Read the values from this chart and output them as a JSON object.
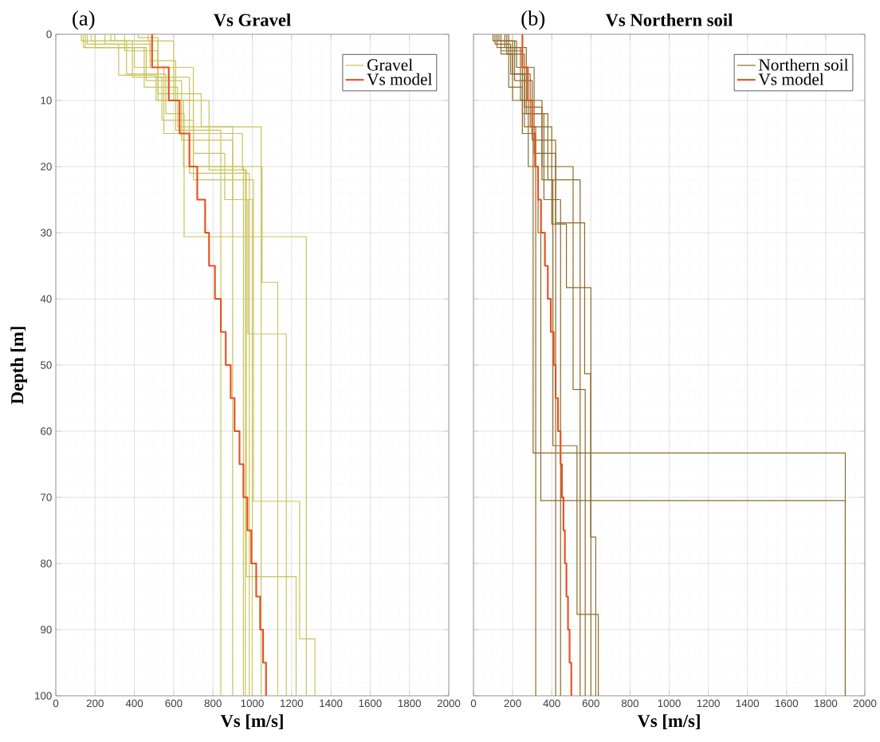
{
  "chart_data": [
    {
      "type": "line",
      "title": "Vs Gravel",
      "xlabel": "Vs [m/s]",
      "ylabel": "Depth [m]",
      "annotations": [
        "(a)"
      ],
      "xlim": [
        0,
        2000
      ],
      "ylim": [
        100,
        0
      ],
      "xticks": [
        0,
        200,
        400,
        600,
        800,
        1000,
        1200,
        1400,
        1600,
        1800,
        2000
      ],
      "yticks": [
        0,
        10,
        20,
        30,
        40,
        50,
        60,
        70,
        80,
        90,
        100
      ],
      "grid": true,
      "legend": "top right",
      "series": [
        {
          "name": "Gravel",
          "color": "#c9c35c",
          "x": [
            130,
            130,
            360,
            360,
            560,
            560,
            653,
            653,
            1275,
            1275
          ],
          "values": [
            0,
            1,
            1,
            6,
            6,
            12,
            12,
            30.6,
            30.6,
            100
          ]
        },
        {
          "color": "#c9c35c",
          "x": [
            150,
            150,
            400,
            400,
            550,
            550,
            950,
            950,
            965,
            965
          ],
          "values": [
            0,
            2,
            2,
            5,
            5,
            15,
            15,
            20.5,
            20.5,
            100
          ]
        },
        {
          "color": "#c9c35c",
          "x": [
            160,
            160,
            320,
            320,
            510,
            510,
            700,
            700,
            1050,
            1050,
            1130,
            1130
          ],
          "values": [
            0,
            1.5,
            1.5,
            6.2,
            6.2,
            10,
            10,
            20,
            20,
            37.5,
            37.5,
            100
          ]
        },
        {
          "color": "#c9c35c",
          "x": [
            200,
            200,
            450,
            450,
            620,
            620,
            900,
            900,
            978,
            978,
            1173,
            1173
          ],
          "values": [
            0,
            2,
            2,
            8,
            8,
            14,
            14,
            25,
            25,
            45.3,
            45.3,
            100
          ]
        },
        {
          "color": "#c9c35c",
          "x": [
            180,
            180,
            390,
            390,
            540,
            540,
            700,
            700,
            1006,
            1006,
            1241,
            1241,
            1319,
            1319
          ],
          "values": [
            0,
            1,
            1,
            6.5,
            6.5,
            13,
            13,
            22,
            22,
            70.6,
            70.6,
            91.4,
            91.4,
            100
          ]
        },
        {
          "color": "#c9c35c",
          "x": [
            250,
            250,
            480,
            480,
            600,
            600,
            780,
            780,
            970,
            970,
            1223,
            1223
          ],
          "values": [
            0,
            1.5,
            1.5,
            5,
            5,
            10,
            10,
            20.5,
            20.5,
            82,
            82,
            100
          ]
        },
        {
          "color": "#c9c35c",
          "x": [
            300,
            300,
            480,
            480,
            610,
            610,
            840,
            840
          ],
          "values": [
            0,
            1,
            1,
            4,
            4,
            14.5,
            14.5,
            100
          ]
        },
        {
          "color": "#c9c35c",
          "x": [
            140,
            140,
            460,
            460,
            640,
            640,
            900,
            900
          ],
          "values": [
            0,
            2,
            2,
            7,
            7,
            16,
            16,
            100
          ]
        },
        {
          "color": "#c9c35c",
          "x": [
            420,
            420,
            520,
            520,
            650,
            650,
            955,
            955
          ],
          "values": [
            0,
            0.5,
            0.5,
            10,
            10,
            20,
            20,
            100
          ]
        },
        {
          "color": "#c9c35c",
          "x": [
            470,
            470,
            600,
            600,
            700,
            700,
            860,
            860,
            1000,
            1000
          ],
          "values": [
            0,
            1,
            1,
            5,
            5,
            18,
            18,
            25,
            25,
            100
          ]
        },
        {
          "color": "#c9c35c",
          "x": [
            350,
            350,
            520,
            520,
            740,
            740,
            1045,
            1045
          ],
          "values": [
            0,
            2.5,
            2.5,
            9,
            9,
            14,
            14,
            100
          ]
        },
        {
          "color": "#c9c35c",
          "x": [
            280,
            280,
            520,
            520,
            680,
            680,
            985,
            985
          ],
          "values": [
            0,
            1,
            1,
            6.5,
            6.5,
            21,
            21,
            100
          ]
        },
        {
          "name": "Vs model",
          "color": "#e8501e",
          "x": [
            490,
            490,
            575,
            575,
            630,
            630,
            680,
            680,
            720,
            720,
            760,
            760,
            780,
            780,
            810,
            810,
            840,
            840,
            865,
            865,
            890,
            890,
            910,
            910,
            935,
            935,
            955,
            955,
            975,
            975,
            995,
            995,
            1020,
            1020,
            1040,
            1040,
            1055,
            1055,
            1070,
            1070
          ],
          "values": [
            0,
            5,
            5,
            10,
            10,
            15,
            15,
            20,
            20,
            25,
            25,
            30,
            30,
            35,
            35,
            40,
            40,
            45,
            45,
            50,
            50,
            55,
            55,
            60,
            60,
            65,
            65,
            70,
            70,
            75,
            75,
            80,
            80,
            85,
            85,
            90,
            90,
            95,
            95,
            100
          ]
        }
      ]
    },
    {
      "type": "line",
      "title": "Vs Northern soil",
      "xlabel": "Vs [m/s]",
      "annotations": [
        "(b)"
      ],
      "xlim": [
        0,
        2000
      ],
      "ylim": [
        100,
        0
      ],
      "xticks": [
        0,
        200,
        400,
        600,
        800,
        1000,
        1200,
        1400,
        1600,
        1800,
        2000
      ],
      "yticks": [
        0,
        10,
        20,
        30,
        40,
        50,
        60,
        70,
        80,
        90,
        100
      ],
      "tick_labels": "x",
      "grid": true,
      "legend": "top right",
      "series": [
        {
          "name": "Northern soil",
          "color": "#8c6b2a",
          "x": [
            120,
            120,
            180,
            180,
            250,
            250,
            305,
            305,
            1900,
            1900
          ],
          "values": [
            0,
            2,
            2,
            8,
            8,
            15,
            15,
            63.3,
            63.3,
            100
          ]
        },
        {
          "color": "#8c6b2a",
          "x": [
            140,
            140,
            200,
            200,
            280,
            280,
            330,
            330,
            344,
            344,
            1900,
            1900
          ],
          "values": [
            0,
            3,
            3,
            10,
            10,
            20,
            20,
            30,
            30,
            70.5,
            70.5,
            100
          ]
        },
        {
          "color": "#8c6b2a",
          "x": [
            110,
            110,
            190,
            190,
            260,
            260,
            318,
            318
          ],
          "values": [
            0,
            1.5,
            1.5,
            6,
            6,
            14,
            14,
            100
          ]
        },
        {
          "color": "#8c6b2a",
          "x": [
            160,
            160,
            240,
            240,
            350,
            350,
            509,
            509,
            571,
            571
          ],
          "values": [
            0,
            2,
            2,
            10,
            10,
            20,
            20,
            53.7,
            53.7,
            100
          ]
        },
        {
          "color": "#8c6b2a",
          "x": [
            130,
            130,
            210,
            210,
            300,
            300,
            420,
            420,
            568,
            568,
            599,
            599,
            625,
            625
          ],
          "values": [
            0,
            1,
            1,
            7,
            7,
            16,
            16,
            28.5,
            28.5,
            51.3,
            51.3,
            76,
            76,
            100
          ]
        },
        {
          "color": "#8c6b2a",
          "x": [
            170,
            170,
            260,
            260,
            350,
            350,
            406,
            406,
            529,
            529,
            638,
            638
          ],
          "values": [
            0,
            3,
            3,
            11,
            11,
            22,
            22,
            62.2,
            62.2,
            87.7,
            87.7,
            100
          ]
        },
        {
          "color": "#8c6b2a",
          "x": [
            120,
            120,
            220,
            220,
            310,
            310,
            420,
            420
          ],
          "values": [
            0,
            1,
            1,
            5,
            5,
            18,
            18,
            100
          ]
        },
        {
          "color": "#8c6b2a",
          "x": [
            180,
            180,
            270,
            270,
            360,
            360,
            445,
            445
          ],
          "values": [
            0,
            2,
            2,
            12,
            12,
            25,
            25,
            100
          ]
        },
        {
          "color": "#8c6b2a",
          "x": [
            100,
            100,
            200,
            200,
            290,
            290,
            400,
            400,
            475,
            475,
            600,
            600
          ],
          "values": [
            0,
            1,
            1,
            6,
            6,
            14,
            14,
            28.7,
            28.7,
            38.3,
            38.3,
            100
          ]
        },
        {
          "color": "#8c6b2a",
          "x": [
            140,
            140,
            250,
            250,
            380,
            380,
            545,
            545
          ],
          "values": [
            0,
            2.5,
            2.5,
            12,
            12,
            22,
            22,
            100
          ]
        },
        {
          "name": "Vs model",
          "color": "#e8501e",
          "x": [
            250,
            250,
            278,
            278,
            300,
            300,
            315,
            315,
            330,
            330,
            345,
            345,
            365,
            365,
            380,
            380,
            395,
            395,
            410,
            410,
            420,
            420,
            432,
            432,
            445,
            445,
            452,
            452,
            460,
            460,
            467,
            467,
            475,
            475,
            483,
            483,
            491,
            491,
            500,
            500
          ],
          "values": [
            0,
            5,
            5,
            10,
            10,
            15,
            15,
            20,
            20,
            25,
            25,
            30,
            30,
            35,
            35,
            40,
            40,
            45,
            45,
            50,
            50,
            55,
            55,
            60,
            60,
            65,
            65,
            70,
            70,
            75,
            75,
            80,
            80,
            85,
            85,
            90,
            90,
            95,
            95,
            100
          ]
        }
      ]
    }
  ]
}
